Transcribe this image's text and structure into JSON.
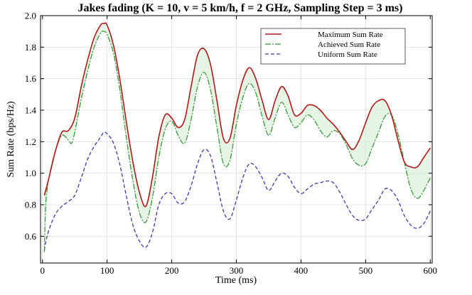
{
  "chart_data": {
    "type": "line",
    "title": "Jakes fading (K = 10, v = 5 km/h, f = 2 GHz, Sampling Step = 3 ms)",
    "xlabel": "Time (ms)",
    "ylabel": "Sum Rate (bps/Hz)",
    "xlim": [
      -3,
      603
    ],
    "ylim": [
      0.43,
      2.0
    ],
    "xticks": [
      0,
      100,
      200,
      300,
      400,
      500,
      600
    ],
    "yticks": [
      0.6,
      0.8,
      1.0,
      1.2,
      1.4,
      1.6,
      1.8,
      2.0
    ],
    "xtick_labels": [
      "0",
      "100",
      "200",
      "300",
      "400",
      "500",
      "600"
    ],
    "ytick_labels": [
      "0.6",
      "0.8",
      "1.0",
      "1.2",
      "1.4",
      "1.6",
      "1.8",
      "2.0"
    ],
    "grid": true,
    "legend_position": "top-right",
    "shaded_region": "between Maximum Sum Rate and Achieved Sum Rate",
    "series": [
      {
        "name": "Maximum Sum Rate",
        "color": "#b21a1a",
        "style": "solid",
        "x": [
          3,
          10,
          20,
          30,
          40,
          50,
          60,
          70,
          80,
          90,
          95,
          100,
          110,
          120,
          130,
          140,
          150,
          160,
          170,
          180,
          190,
          200,
          210,
          220,
          230,
          240,
          250,
          260,
          270,
          280,
          290,
          300,
          310,
          320,
          330,
          340,
          350,
          360,
          370,
          380,
          390,
          400,
          410,
          420,
          430,
          440,
          450,
          460,
          470,
          480,
          490,
          500,
          510,
          520,
          530,
          540,
          550,
          560,
          570,
          580,
          590,
          600
        ],
        "y": [
          0.86,
          0.97,
          1.14,
          1.26,
          1.27,
          1.35,
          1.55,
          1.72,
          1.86,
          1.94,
          1.95,
          1.94,
          1.81,
          1.59,
          1.32,
          1.07,
          0.88,
          0.79,
          0.97,
          1.23,
          1.37,
          1.35,
          1.29,
          1.34,
          1.55,
          1.75,
          1.79,
          1.69,
          1.46,
          1.22,
          1.22,
          1.43,
          1.59,
          1.67,
          1.6,
          1.46,
          1.34,
          1.46,
          1.55,
          1.49,
          1.37,
          1.38,
          1.43,
          1.43,
          1.4,
          1.35,
          1.31,
          1.26,
          1.2,
          1.15,
          1.21,
          1.32,
          1.42,
          1.46,
          1.46,
          1.37,
          1.21,
          1.07,
          1.04,
          1.04,
          1.1,
          1.16
        ]
      },
      {
        "name": "Achieved Sum Rate",
        "color": "#3a9a3a",
        "style": "dash-dot",
        "x": [
          3,
          5,
          10,
          20,
          30,
          40,
          45,
          50,
          60,
          70,
          80,
          90,
          95,
          100,
          110,
          120,
          130,
          140,
          150,
          160,
          170,
          180,
          190,
          200,
          210,
          220,
          230,
          240,
          250,
          260,
          270,
          280,
          290,
          300,
          310,
          320,
          330,
          340,
          350,
          360,
          370,
          380,
          390,
          400,
          410,
          420,
          430,
          440,
          450,
          460,
          470,
          480,
          490,
          500,
          510,
          520,
          530,
          540,
          550,
          560,
          570,
          580,
          590,
          600
        ],
        "y": [
          0.5,
          0.8,
          0.97,
          1.14,
          1.24,
          1.21,
          1.19,
          1.26,
          1.47,
          1.65,
          1.8,
          1.89,
          1.9,
          1.88,
          1.76,
          1.52,
          1.22,
          0.95,
          0.75,
          0.69,
          0.84,
          1.1,
          1.28,
          1.33,
          1.24,
          1.19,
          1.34,
          1.55,
          1.64,
          1.53,
          1.29,
          1.06,
          1.08,
          1.31,
          1.48,
          1.57,
          1.51,
          1.36,
          1.24,
          1.35,
          1.45,
          1.37,
          1.29,
          1.32,
          1.37,
          1.34,
          1.27,
          1.23,
          1.27,
          1.25,
          1.18,
          1.09,
          1.05,
          1.06,
          1.16,
          1.26,
          1.36,
          1.37,
          1.25,
          1.07,
          0.9,
          0.84,
          0.89,
          0.97
        ]
      },
      {
        "name": "Uniform Sum Rate",
        "color": "#3b3bb0",
        "style": "dashed",
        "x": [
          3,
          5,
          10,
          20,
          30,
          40,
          50,
          60,
          70,
          80,
          90,
          95,
          100,
          110,
          120,
          130,
          140,
          150,
          160,
          170,
          180,
          190,
          200,
          210,
          220,
          230,
          240,
          250,
          260,
          270,
          280,
          290,
          300,
          310,
          320,
          330,
          340,
          350,
          360,
          370,
          380,
          390,
          400,
          410,
          420,
          430,
          440,
          450,
          460,
          470,
          480,
          490,
          500,
          510,
          520,
          530,
          540,
          550,
          560,
          570,
          580,
          590,
          600
        ],
        "y": [
          0.51,
          0.56,
          0.64,
          0.74,
          0.79,
          0.82,
          0.86,
          0.97,
          1.09,
          1.17,
          1.23,
          1.26,
          1.25,
          1.19,
          1.05,
          0.85,
          0.67,
          0.57,
          0.53,
          0.62,
          0.8,
          0.87,
          0.87,
          0.81,
          0.82,
          0.92,
          1.06,
          1.15,
          1.11,
          0.94,
          0.76,
          0.71,
          0.83,
          0.97,
          1.06,
          1.04,
          0.97,
          0.89,
          0.95,
          1.0,
          0.98,
          0.91,
          0.87,
          0.9,
          0.93,
          0.94,
          0.95,
          0.94,
          0.88,
          0.8,
          0.73,
          0.7,
          0.71,
          0.77,
          0.83,
          0.9,
          0.89,
          0.83,
          0.73,
          0.67,
          0.65,
          0.68,
          0.76
        ]
      }
    ]
  }
}
